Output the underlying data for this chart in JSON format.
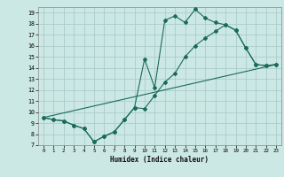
{
  "title": "",
  "xlabel": "Humidex (Indice chaleur)",
  "bg_color": "#cce8e4",
  "grid_color": "#aacccc",
  "line_color": "#1a6b5a",
  "xlim": [
    -0.5,
    23.5
  ],
  "ylim": [
    7,
    19.5
  ],
  "yticks": [
    7,
    8,
    9,
    10,
    11,
    12,
    13,
    14,
    15,
    16,
    17,
    18,
    19
  ],
  "xticks": [
    0,
    1,
    2,
    3,
    4,
    5,
    6,
    7,
    8,
    9,
    10,
    11,
    12,
    13,
    14,
    15,
    16,
    17,
    18,
    19,
    20,
    21,
    22,
    23
  ],
  "line1_x": [
    0,
    1,
    2,
    3,
    4,
    5,
    6,
    7,
    8,
    9,
    10,
    11,
    12,
    13,
    14,
    15,
    16,
    17,
    18,
    19,
    20,
    21,
    22,
    23
  ],
  "line1_y": [
    9.5,
    9.3,
    9.2,
    8.8,
    8.5,
    7.3,
    7.8,
    8.2,
    9.3,
    10.4,
    14.8,
    12.2,
    18.3,
    18.7,
    18.1,
    19.3,
    18.5,
    18.1,
    17.9,
    17.4,
    15.8,
    14.3,
    14.2,
    14.3
  ],
  "line2_x": [
    0,
    1,
    2,
    3,
    4,
    5,
    6,
    7,
    8,
    9,
    10,
    11,
    12,
    13,
    14,
    15,
    16,
    17,
    18,
    19,
    20,
    21,
    22,
    23
  ],
  "line2_y": [
    9.5,
    9.3,
    9.2,
    8.8,
    8.5,
    7.3,
    7.8,
    8.2,
    9.3,
    10.4,
    10.3,
    11.5,
    12.7,
    13.5,
    15.0,
    16.0,
    16.7,
    17.3,
    17.9,
    17.4,
    15.8,
    14.3,
    14.2,
    14.3
  ],
  "line3_x": [
    0,
    23
  ],
  "line3_y": [
    9.5,
    14.3
  ]
}
